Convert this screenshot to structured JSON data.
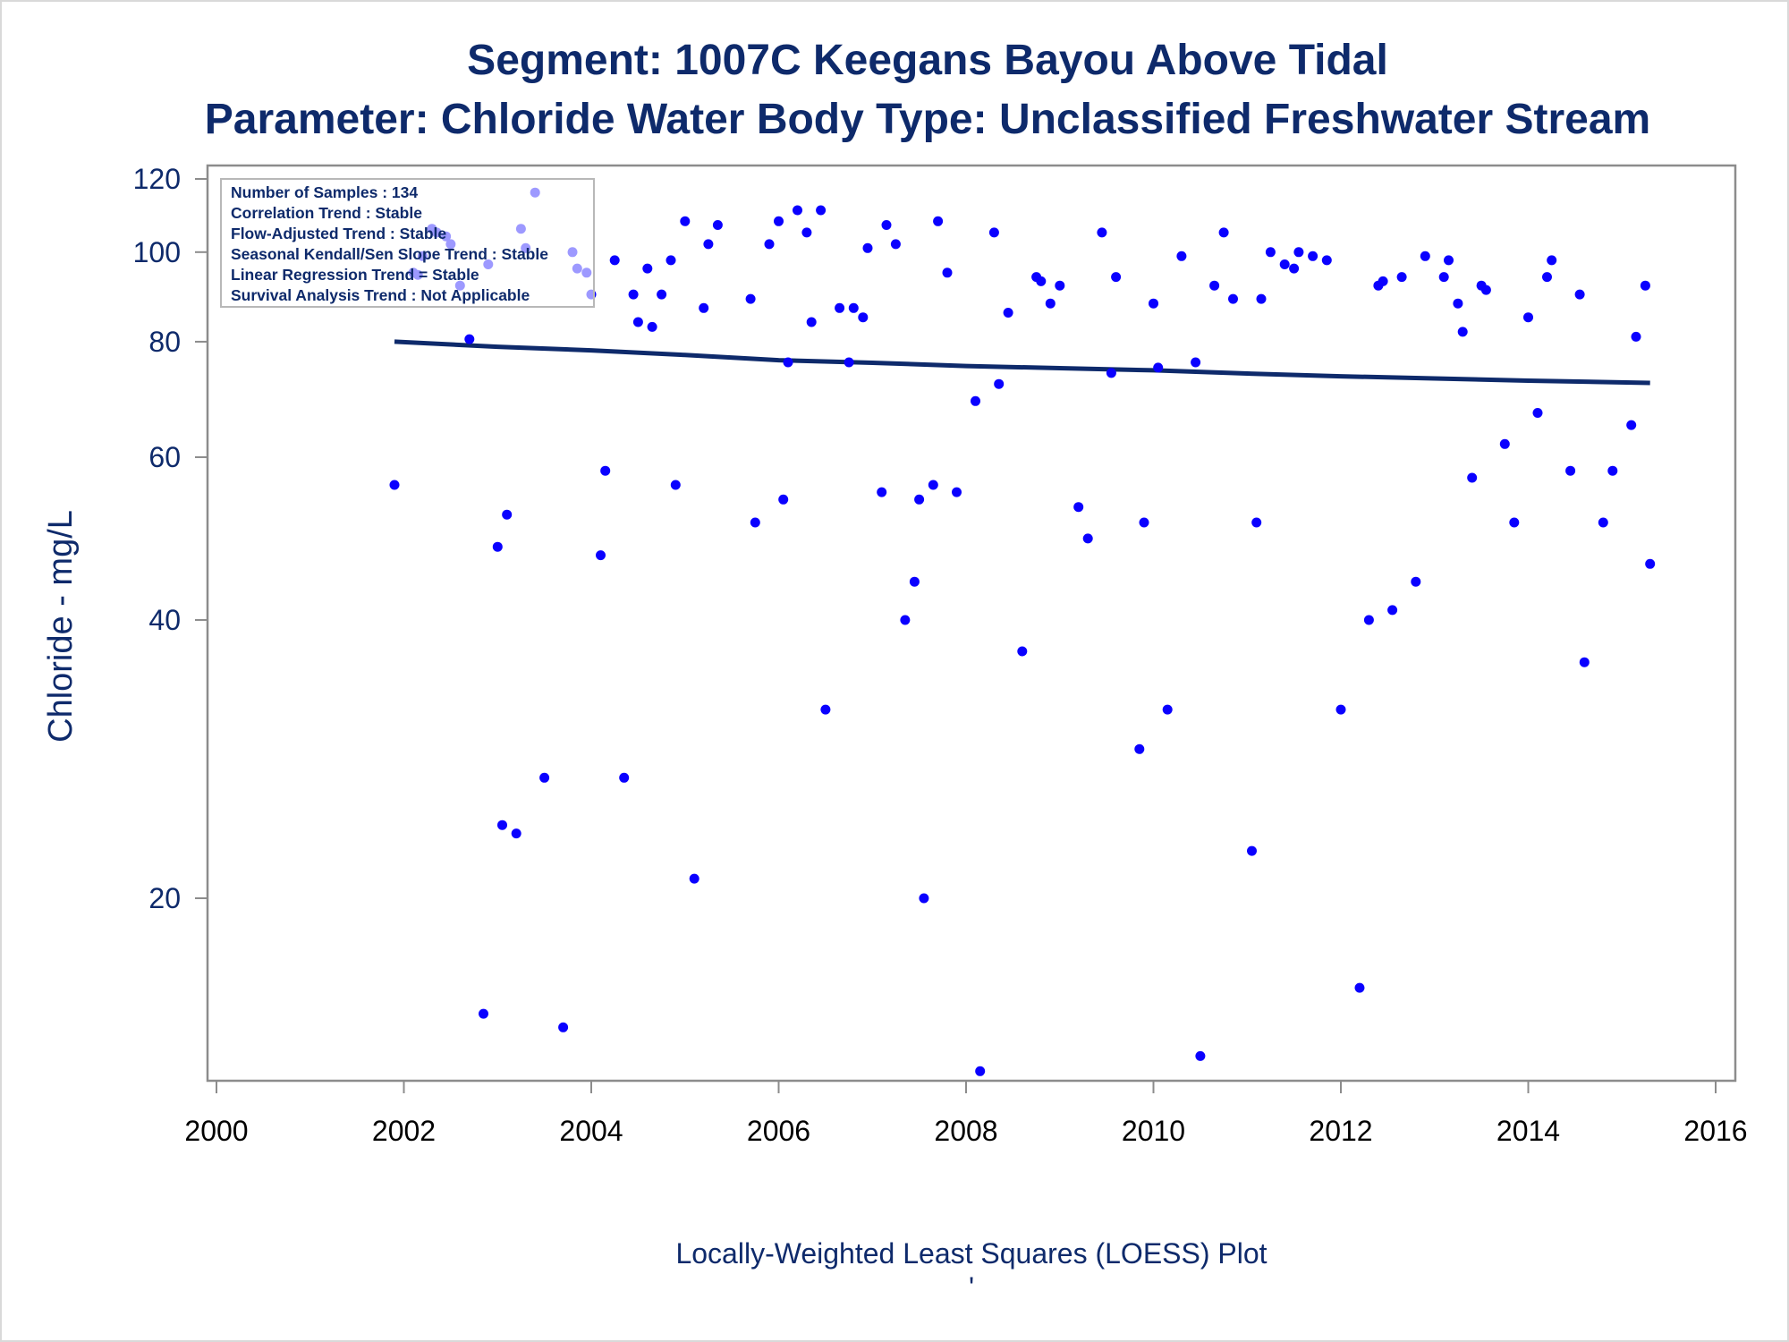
{
  "titles": {
    "line1": "Segment: 1007C  Keegans Bayou Above Tidal",
    "line2": "Parameter: Chloride   Water Body Type: Unclassified Freshwater Stream"
  },
  "footnote": "Locally-Weighted Least Squares (LOESS) Plot",
  "footnote_mark": "'",
  "inset": {
    "lines": [
      "Number of Samples : 134",
      "Correlation Trend : Stable",
      "Flow-Adjusted Trend : Stable",
      "Seasonal Kendall/Sen Slope Trend : Stable",
      "Linear Regression Trend = Stable",
      "Survival Analysis Trend : Not Applicable"
    ]
  },
  "colors": {
    "title": "#0e2a6b",
    "points": "#0a00ff",
    "loess": "#0e2a6b",
    "axis": "#8c8c8c"
  },
  "chart_data": {
    "type": "scatter",
    "title": "Segment: 1007C  Keegans Bayou Above Tidal",
    "subtitle": "Parameter: Chloride   Water Body Type: Unclassified Freshwater Stream",
    "xlabel": "",
    "ylabel": "Chloride - mg/L",
    "y_scale": "log",
    "xlim": [
      2000,
      2016
    ],
    "ylim": [
      12,
      125
    ],
    "x_ticks": [
      2000,
      2002,
      2004,
      2006,
      2008,
      2010,
      2012,
      2014,
      2016
    ],
    "y_ticks": [
      20,
      40,
      60,
      80,
      100,
      120
    ],
    "grid": false,
    "legend": "inset top-left",
    "series": [
      {
        "type": "scatter",
        "points": [
          [
            2001.9,
            56
          ],
          [
            2002.1,
            95
          ],
          [
            2002.15,
            94.5
          ],
          [
            2002.2,
            99
          ],
          [
            2002.3,
            106
          ],
          [
            2002.35,
            105
          ],
          [
            2002.45,
            104
          ],
          [
            2002.5,
            102
          ],
          [
            2002.6,
            92
          ],
          [
            2002.7,
            80.5
          ],
          [
            2002.85,
            15
          ],
          [
            2002.9,
            97
          ],
          [
            2003.0,
            48
          ],
          [
            2003.05,
            24
          ],
          [
            2003.1,
            52
          ],
          [
            2003.2,
            23.5
          ],
          [
            2003.25,
            106
          ],
          [
            2003.3,
            101
          ],
          [
            2003.4,
            116
          ],
          [
            2003.5,
            27
          ],
          [
            2003.7,
            14.5
          ],
          [
            2003.8,
            100
          ],
          [
            2003.85,
            96
          ],
          [
            2003.95,
            95
          ],
          [
            2004.0,
            90
          ],
          [
            2004.1,
            47
          ],
          [
            2004.15,
            58
          ],
          [
            2004.25,
            98
          ],
          [
            2004.35,
            27
          ],
          [
            2004.45,
            90
          ],
          [
            2004.5,
            84
          ],
          [
            2004.6,
            96
          ],
          [
            2004.65,
            83
          ],
          [
            2004.75,
            90
          ],
          [
            2004.85,
            98
          ],
          [
            2004.9,
            56
          ],
          [
            2005.0,
            108
          ],
          [
            2005.1,
            21
          ],
          [
            2005.2,
            87
          ],
          [
            2005.25,
            102
          ],
          [
            2005.35,
            107
          ],
          [
            2005.7,
            89
          ],
          [
            2005.75,
            51
          ],
          [
            2005.9,
            102
          ],
          [
            2006.0,
            108
          ],
          [
            2006.05,
            54
          ],
          [
            2006.1,
            76
          ],
          [
            2006.2,
            111
          ],
          [
            2006.3,
            105
          ],
          [
            2006.35,
            84
          ],
          [
            2006.45,
            111
          ],
          [
            2006.5,
            32
          ],
          [
            2006.65,
            87
          ],
          [
            2006.75,
            76
          ],
          [
            2006.8,
            87
          ],
          [
            2006.9,
            85
          ],
          [
            2006.95,
            101
          ],
          [
            2007.1,
            55
          ],
          [
            2007.15,
            107
          ],
          [
            2007.25,
            102
          ],
          [
            2007.35,
            40
          ],
          [
            2007.45,
            44
          ],
          [
            2007.5,
            54
          ],
          [
            2007.55,
            20
          ],
          [
            2007.65,
            56
          ],
          [
            2007.7,
            108
          ],
          [
            2007.8,
            95
          ],
          [
            2007.9,
            55
          ],
          [
            2008.1,
            69
          ],
          [
            2008.15,
            13
          ],
          [
            2008.3,
            105
          ],
          [
            2008.35,
            72
          ],
          [
            2008.45,
            86
          ],
          [
            2008.6,
            37
          ],
          [
            2008.75,
            94
          ],
          [
            2008.8,
            93
          ],
          [
            2008.9,
            88
          ],
          [
            2009.0,
            92
          ],
          [
            2009.2,
            53
          ],
          [
            2009.3,
            49
          ],
          [
            2009.45,
            105
          ],
          [
            2009.55,
            74
          ],
          [
            2009.6,
            94
          ],
          [
            2009.85,
            29
          ],
          [
            2009.9,
            51
          ],
          [
            2010.0,
            88
          ],
          [
            2010.05,
            75
          ],
          [
            2010.15,
            32
          ],
          [
            2010.3,
            99
          ],
          [
            2010.45,
            76
          ],
          [
            2010.5,
            13.5
          ],
          [
            2010.65,
            92
          ],
          [
            2010.75,
            105
          ],
          [
            2010.85,
            89
          ],
          [
            2011.05,
            22.5
          ],
          [
            2011.1,
            51
          ],
          [
            2011.15,
            89
          ],
          [
            2011.25,
            100
          ],
          [
            2011.4,
            97
          ],
          [
            2011.5,
            96
          ],
          [
            2011.55,
            100
          ],
          [
            2011.7,
            99
          ],
          [
            2011.85,
            98
          ],
          [
            2012.0,
            32
          ],
          [
            2012.2,
            16
          ],
          [
            2012.3,
            40
          ],
          [
            2012.4,
            92
          ],
          [
            2012.45,
            93
          ],
          [
            2012.55,
            41
          ],
          [
            2012.65,
            94
          ],
          [
            2012.8,
            44
          ],
          [
            2012.9,
            99
          ],
          [
            2013.1,
            94
          ],
          [
            2013.15,
            98
          ],
          [
            2013.25,
            88
          ],
          [
            2013.3,
            82
          ],
          [
            2013.4,
            57
          ],
          [
            2013.5,
            92
          ],
          [
            2013.55,
            91
          ],
          [
            2013.75,
            62
          ],
          [
            2013.85,
            51
          ],
          [
            2014.0,
            85
          ],
          [
            2014.1,
            67
          ],
          [
            2014.2,
            94
          ],
          [
            2014.25,
            98
          ],
          [
            2014.45,
            58
          ],
          [
            2014.55,
            90
          ],
          [
            2014.6,
            36
          ],
          [
            2014.8,
            51
          ],
          [
            2014.9,
            58
          ],
          [
            2015.1,
            65
          ],
          [
            2015.15,
            81
          ],
          [
            2015.25,
            92
          ],
          [
            2015.3,
            46
          ]
        ]
      },
      {
        "type": "line",
        "points": [
          [
            2001.9,
            80
          ],
          [
            2003.0,
            79
          ],
          [
            2004.0,
            78.3
          ],
          [
            2005.0,
            77.4
          ],
          [
            2006.0,
            76.4
          ],
          [
            2007.0,
            75.9
          ],
          [
            2008.0,
            75.3
          ],
          [
            2009.0,
            74.9
          ],
          [
            2010.0,
            74.5
          ],
          [
            2011.0,
            73.9
          ],
          [
            2012.0,
            73.4
          ],
          [
            2013.0,
            73.0
          ],
          [
            2014.0,
            72.6
          ],
          [
            2015.3,
            72.2
          ]
        ]
      }
    ]
  }
}
